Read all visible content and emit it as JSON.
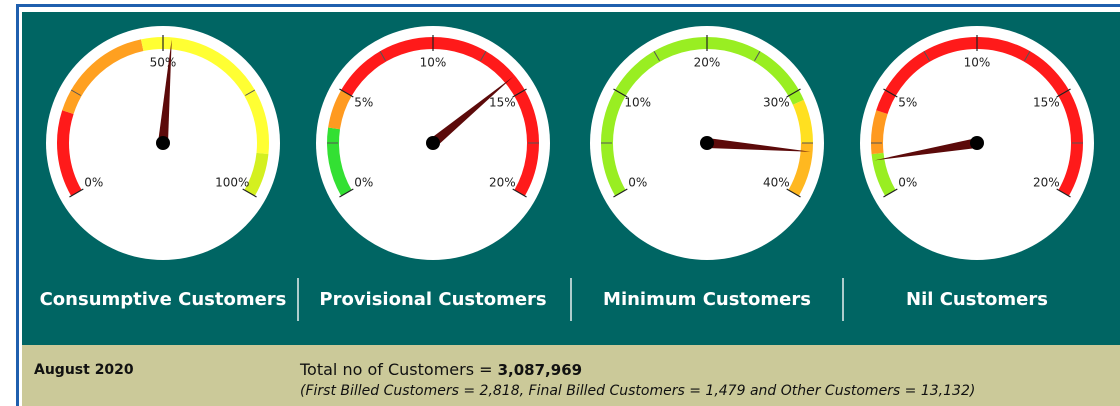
{
  "chart_data": [
    {
      "type": "gauge",
      "title": "Consumptive Customers",
      "xlim": [
        0,
        100
      ],
      "value": 52,
      "xticks": [
        {
          "value": 0,
          "label": "0%"
        },
        {
          "value": 50,
          "label": "50%"
        },
        {
          "value": 100,
          "label": "100%"
        }
      ],
      "bands": [
        {
          "from": 0,
          "to": 20,
          "color": "#ff1a1a"
        },
        {
          "from": 20,
          "to": 45,
          "color": "#ffa020"
        },
        {
          "from": 45,
          "to": 90,
          "color": "#ffff33"
        },
        {
          "from": 90,
          "to": 100,
          "color": "#d4f020"
        }
      ],
      "needle_color": "#5c0a0a"
    },
    {
      "type": "gauge",
      "title": "Provisional Customers",
      "xlim": [
        0,
        20
      ],
      "value": 14.2,
      "xticks": [
        {
          "value": 0,
          "label": "0%"
        },
        {
          "value": 5,
          "label": "5%"
        },
        {
          "value": 10,
          "label": "10%"
        },
        {
          "value": 15,
          "label": "15%"
        },
        {
          "value": 20,
          "label": "20%"
        }
      ],
      "bands": [
        {
          "from": 0,
          "to": 3.2,
          "color": "#33e033"
        },
        {
          "from": 3.2,
          "to": 5,
          "color": "#ff9a20"
        },
        {
          "from": 5,
          "to": 20,
          "color": "#ff1a1a"
        }
      ],
      "needle_color": "#5c0a0a"
    },
    {
      "type": "gauge",
      "title": "Minimum Customers",
      "xlim": [
        0,
        40
      ],
      "value": 35.8,
      "xticks": [
        {
          "value": 0,
          "label": "0%"
        },
        {
          "value": 10,
          "label": "10%"
        },
        {
          "value": 20,
          "label": "20%"
        },
        {
          "value": 30,
          "label": "30%"
        },
        {
          "value": 40,
          "label": "40%"
        }
      ],
      "bands": [
        {
          "from": 0,
          "to": 31,
          "color": "#99ee22"
        },
        {
          "from": 31,
          "to": 35,
          "color": "#ffe020"
        },
        {
          "from": 35,
          "to": 40,
          "color": "#ffb820"
        }
      ],
      "needle_color": "#5c0a0a"
    },
    {
      "type": "gauge",
      "title": "Nil Customers",
      "xlim": [
        0,
        20
      ],
      "value": 1.7,
      "xticks": [
        {
          "value": 0,
          "label": "0%"
        },
        {
          "value": 5,
          "label": "5%"
        },
        {
          "value": 10,
          "label": "10%"
        },
        {
          "value": 15,
          "label": "15%"
        },
        {
          "value": 20,
          "label": "20%"
        }
      ],
      "bands": [
        {
          "from": 0,
          "to": 2,
          "color": "#99ee22"
        },
        {
          "from": 2,
          "to": 4,
          "color": "#ff9a20"
        },
        {
          "from": 4,
          "to": 20,
          "color": "#ff1a1a"
        }
      ],
      "needle_color": "#5c0a0a"
    }
  ],
  "footer": {
    "period": "August 2020",
    "total_label": "Total no of Customers = ",
    "total_value": "3,087,969",
    "details": "(First Billed Customers = 2,818, Final Billed Customers = 1,479 and Other Customers = 13,132)"
  }
}
